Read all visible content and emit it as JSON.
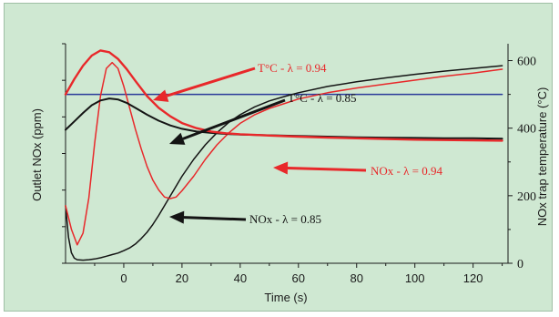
{
  "chart_data": {
    "type": "line",
    "xlabel": "Time (s)",
    "ylabel_left": "Outlet NOx (ppm)",
    "ylabel_right": "NOx trap temperature (°C)",
    "xlim": [
      -20,
      132
    ],
    "x_ticks": [
      0,
      20,
      40,
      60,
      80,
      100,
      120
    ],
    "y_right_lim": [
      0,
      650
    ],
    "y_right_ticks": [
      0,
      200,
      400,
      600
    ],
    "grid": false,
    "colors": {
      "red": "#e8282a",
      "black": "#141414",
      "blue": "#2a3a9a",
      "background": "#cfe8d2"
    },
    "series": [
      {
        "name": "T°C - λ = 0.94",
        "axis": "right",
        "color": "#e8282a",
        "x": [
          -20,
          -17,
          -14,
          -11,
          -8,
          -5,
          -2,
          1,
          4,
          8,
          12,
          16,
          20,
          25,
          30,
          35,
          40,
          45,
          50,
          60,
          70,
          80,
          90,
          100,
          110,
          120,
          130
        ],
        "y": [
          500,
          545,
          585,
          615,
          630,
          625,
          605,
          575,
          540,
          495,
          460,
          435,
          415,
          400,
          390,
          385,
          382,
          380,
          378,
          375,
          372,
          370,
          368,
          366,
          365,
          364,
          363
        ]
      },
      {
        "name": "T°C - λ = 0.85",
        "axis": "right",
        "color": "#141414",
        "x": [
          -20,
          -17,
          -14,
          -11,
          -8,
          -5,
          -2,
          1,
          4,
          8,
          12,
          16,
          20,
          25,
          30,
          35,
          40,
          45,
          50,
          60,
          70,
          80,
          90,
          100,
          110,
          120,
          130
        ],
        "y": [
          395,
          420,
          445,
          468,
          482,
          488,
          485,
          475,
          460,
          440,
          422,
          408,
          398,
          390,
          386,
          383,
          381,
          380,
          379,
          377,
          375,
          373,
          372,
          371,
          370,
          370,
          369
        ]
      },
      {
        "name": "NOx - λ = 0.94",
        "axis": "left",
        "color": "#e8282a",
        "x": [
          -20,
          -18,
          -16,
          -14,
          -12,
          -10,
          -8,
          -6,
          -4,
          -2,
          0,
          2,
          4,
          6,
          8,
          10,
          12,
          14,
          16,
          18,
          20,
          24,
          28,
          32,
          36,
          40,
          45,
          50,
          55,
          60,
          70,
          80,
          90,
          100,
          110,
          120,
          130
        ],
        "y": [
          140,
          80,
          40,
          70,
          160,
          300,
          420,
          490,
          505,
          490,
          445,
          390,
          335,
          285,
          240,
          205,
          180,
          162,
          158,
          162,
          178,
          215,
          258,
          295,
          325,
          350,
          372,
          388,
          400,
          412,
          428,
          440,
          450,
          460,
          470,
          478,
          488
        ]
      },
      {
        "name": "NOx - λ = 0.85",
        "axis": "left",
        "color": "#141414",
        "x": [
          -20,
          -19,
          -18,
          -17,
          -16,
          -14,
          -12,
          -10,
          -8,
          -6,
          -4,
          -2,
          0,
          2,
          4,
          6,
          8,
          10,
          12,
          14,
          16,
          18,
          20,
          24,
          28,
          32,
          36,
          40,
          45,
          50,
          55,
          60,
          70,
          80,
          90,
          100,
          110,
          120,
          130
        ],
        "y": [
          140,
          60,
          20,
          6,
          2,
          1,
          2,
          4,
          7,
          11,
          15,
          19,
          25,
          32,
          42,
          56,
          72,
          92,
          115,
          140,
          165,
          190,
          215,
          258,
          295,
          326,
          352,
          372,
          392,
          407,
          418,
          428,
          444,
          456,
          466,
          475,
          483,
          490,
          497
        ]
      },
      {
        "name": "",
        "axis": "right",
        "color": "#2a3a9a",
        "x": [
          -20,
          130
        ],
        "y": [
          500,
          500
        ]
      }
    ],
    "annotations": [
      {
        "text": "T°C - λ = 0.94",
        "color": "#e8282a"
      },
      {
        "text": "T°C - λ = 0.85",
        "color": "#141414"
      },
      {
        "text": "NOx - λ = 0.94",
        "color": "#e8282a"
      },
      {
        "text": "NOx - λ = 0.85",
        "color": "#141414"
      }
    ]
  }
}
